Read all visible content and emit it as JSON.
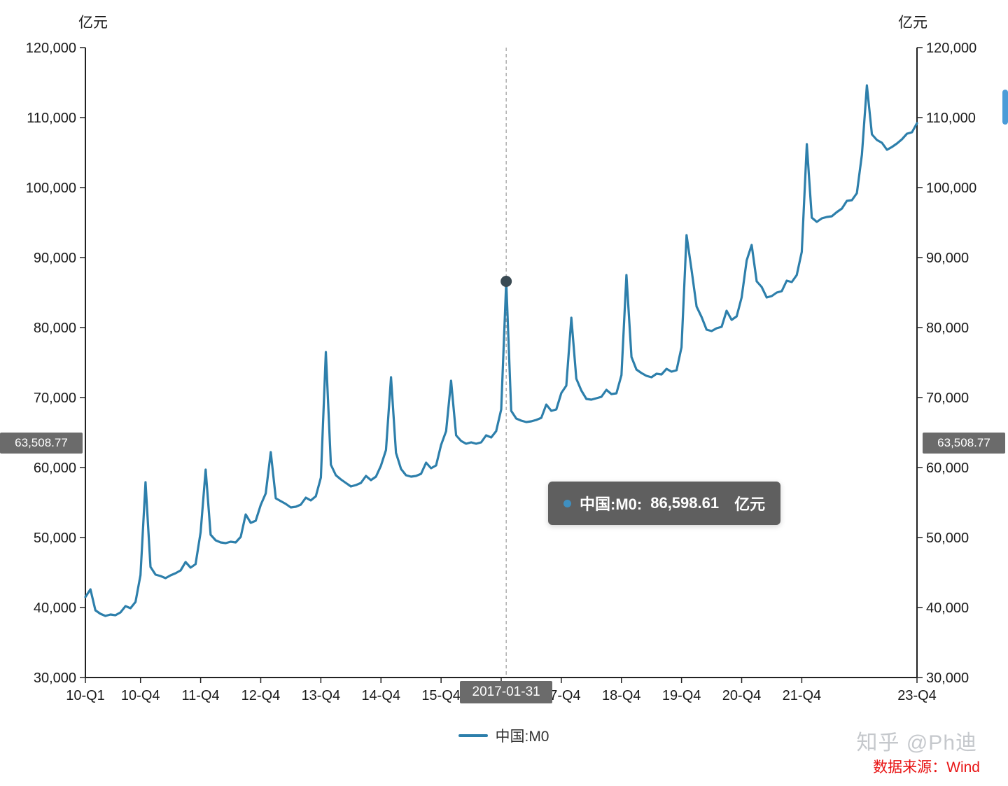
{
  "axes": {
    "unit_left": "亿元",
    "unit_right": "亿元"
  },
  "chart_data": {
    "type": "line",
    "title": "",
    "unit": "亿元",
    "ylim": [
      30000,
      120000
    ],
    "ytick_step": 10000,
    "x_start": "2010-01",
    "x_freq": "monthly",
    "grid": false,
    "legend_position": "bottom-center",
    "x_ticks": [
      {
        "label": "10-Q1",
        "month_index": 0
      },
      {
        "label": "10-Q4",
        "month_index": 11
      },
      {
        "label": "11-Q4",
        "month_index": 23
      },
      {
        "label": "12-Q4",
        "month_index": 35
      },
      {
        "label": "13-Q4",
        "month_index": 47
      },
      {
        "label": "14-Q4",
        "month_index": 59
      },
      {
        "label": "15-Q4",
        "month_index": 71
      },
      {
        "label": "16-Q4",
        "month_index": 83
      },
      {
        "label": "17-Q4",
        "month_index": 95
      },
      {
        "label": "18-Q4",
        "month_index": 107
      },
      {
        "label": "19-Q4",
        "month_index": 119
      },
      {
        "label": "20-Q4",
        "month_index": 131
      },
      {
        "label": "21-Q4",
        "month_index": 143
      },
      {
        "label": "23-Q4",
        "month_index": 166
      }
    ],
    "series": [
      {
        "name": "中国:M0",
        "color": "#2d7fab",
        "values": [
          41500,
          42600,
          39600,
          39100,
          38800,
          39000,
          38900,
          39300,
          40200,
          39900,
          40800,
          44628,
          57900,
          45800,
          44700,
          44500,
          44200,
          44600,
          44900,
          45300,
          46500,
          45700,
          46200,
          50748,
          59700,
          50400,
          49600,
          49300,
          49200,
          49400,
          49300,
          50100,
          53300,
          52100,
          52400,
          54660,
          56300,
          62200,
          55600,
          55200,
          54800,
          54300,
          54400,
          54700,
          55700,
          55300,
          55900,
          58574,
          76500,
          60400,
          58900,
          58300,
          57800,
          57300,
          57500,
          57800,
          58800,
          58200,
          58700,
          60259,
          62500,
          72900,
          62100,
          59800,
          58900,
          58700,
          58800,
          59100,
          60700,
          59900,
          60300,
          63217,
          65200,
          72400,
          64600,
          63800,
          63400,
          63600,
          63400,
          63600,
          64600,
          64300,
          65200,
          68304,
          86598.61,
          68100,
          67000,
          66700,
          66500,
          66600,
          66800,
          67100,
          69000,
          68100,
          68300,
          70646,
          71700,
          81400,
          72700,
          71000,
          69800,
          69700,
          69900,
          70100,
          71100,
          70500,
          70600,
          73208,
          87500,
          75800,
          74000,
          73500,
          73100,
          72900,
          73400,
          73300,
          74100,
          73700,
          73900,
          77189,
          93200,
          88200,
          83000,
          81500,
          79700,
          79500,
          79900,
          80100,
          82400,
          81100,
          81600,
          84310,
          89600,
          91800,
          86600,
          85800,
          84300,
          84500,
          85000,
          85200,
          86700,
          86500,
          87500,
          90825,
          106200,
          95700,
          95100,
          95600,
          95800,
          95900,
          96500,
          97000,
          98100,
          98200,
          99200,
          104700,
          114600,
          107600,
          106800,
          106400,
          105400,
          105800,
          106300,
          106900,
          107700,
          107900,
          109200
        ]
      }
    ],
    "crosshair": {
      "date_label": "2017-01-31",
      "month_index": 84,
      "point_value": 86598.61,
      "y_axis_value": 63508.77,
      "y_axis_badge_text": "63,508.77"
    }
  },
  "tooltip": {
    "series_label": "中国:M0:",
    "value": "86,598.61",
    "unit": "亿元"
  },
  "legend": {
    "label": "中国:M0"
  },
  "watermark": {
    "text": "知乎 @Ph迪"
  },
  "source": {
    "text": "数据来源：Wind"
  }
}
